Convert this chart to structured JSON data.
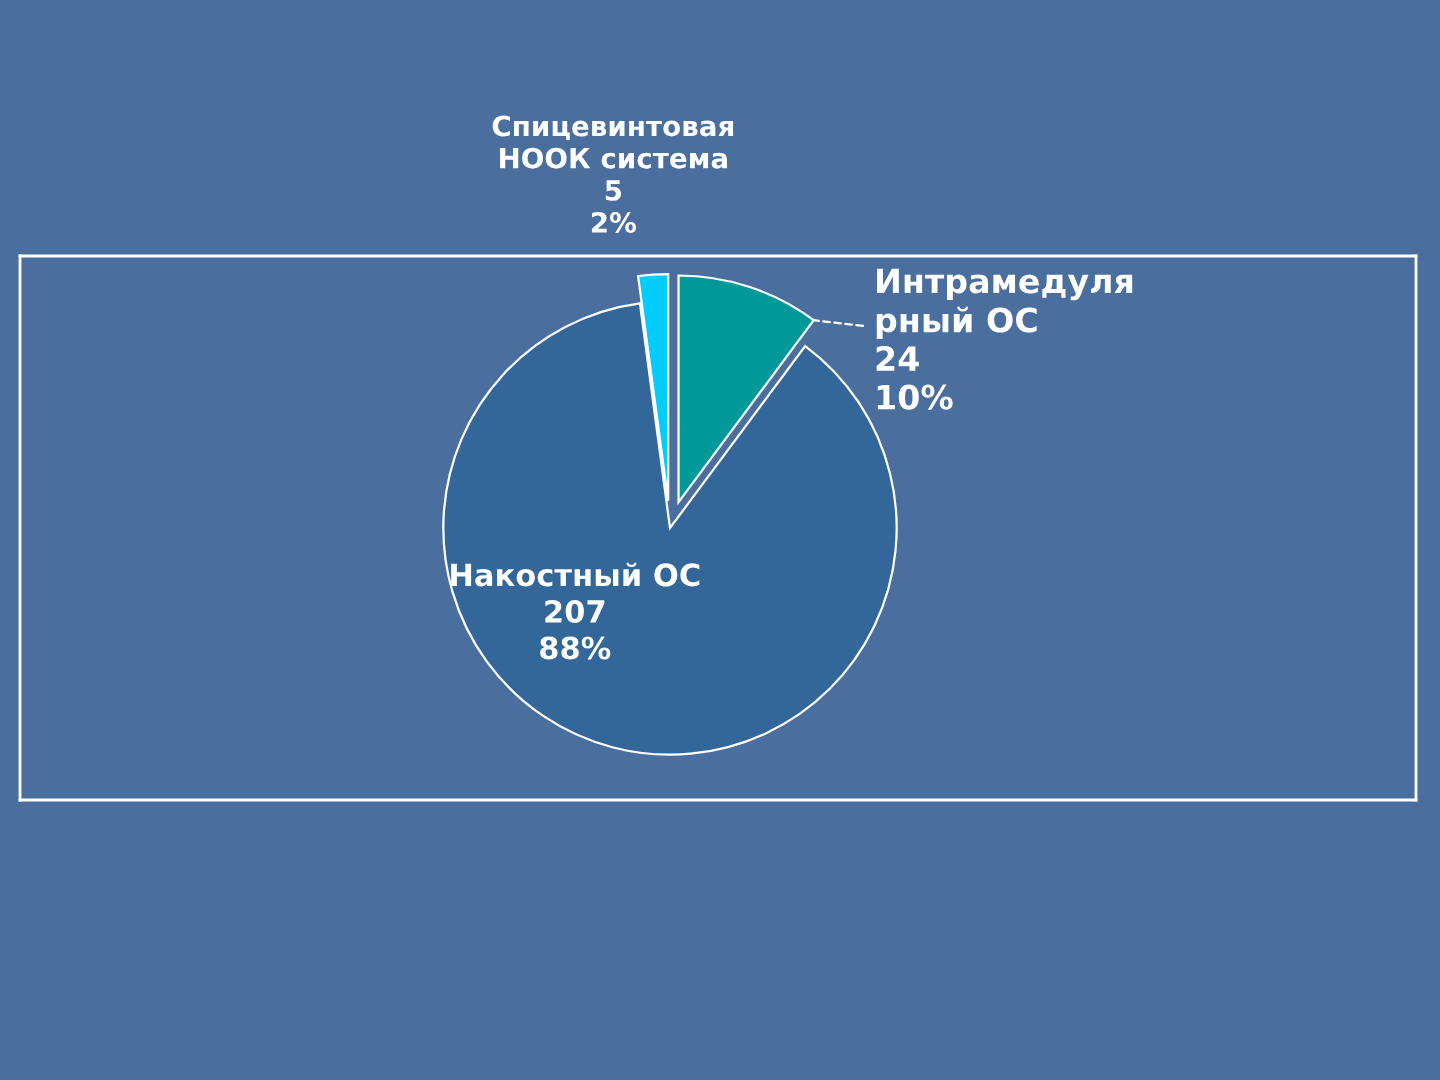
{
  "chart_data": {
    "type": "pie",
    "categories": [
      "Интрамедуля\nрный ОС",
      "Накостный ОС",
      "Спицевинтовая\nНООК система"
    ],
    "values": [
      24,
      207,
      5
    ],
    "colors": [
      "#009999",
      "#336699",
      "#00ccff"
    ],
    "value_labels": [
      "24\n10%",
      "207\n88%",
      "5\n2%"
    ]
  }
}
